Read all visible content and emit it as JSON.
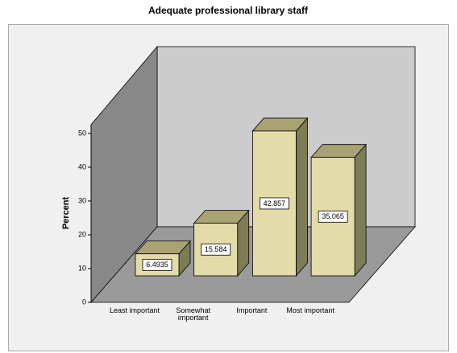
{
  "chart_data": {
    "type": "bar3d",
    "title": "Adequate professional library staff",
    "y_label": "Percent",
    "categories": [
      "Least important",
      "Somewhat important",
      "Important",
      "Most important"
    ],
    "values": [
      6.4935,
      15.584,
      42.857,
      35.065
    ],
    "color": "#e3dca8",
    "ylim": [
      0,
      52.6
    ],
    "yticks": [
      0,
      10,
      20,
      30,
      40,
      50
    ]
  }
}
